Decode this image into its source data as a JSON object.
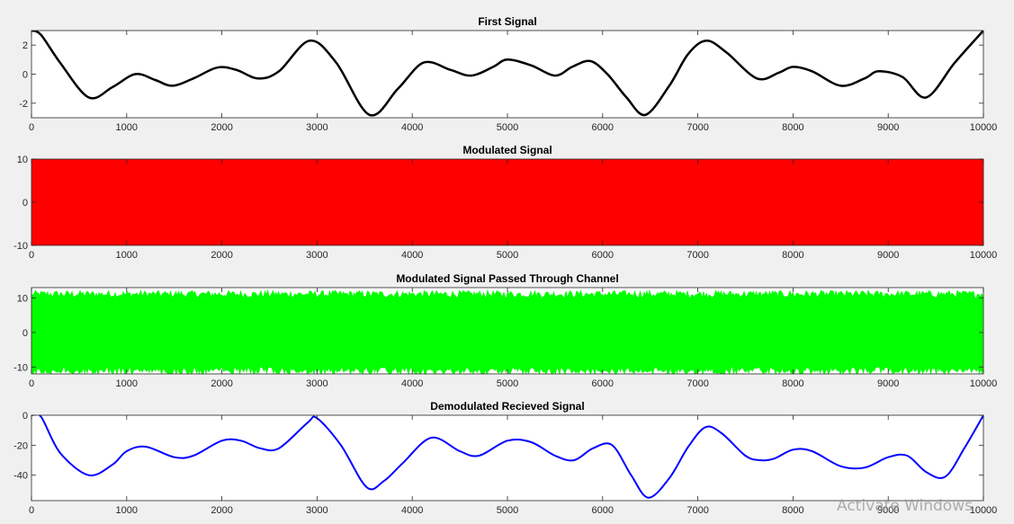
{
  "watermark": "Activate Windows",
  "chart_data": [
    {
      "type": "line",
      "title": "First Signal",
      "color": "#000000",
      "xlim": [
        0,
        10000
      ],
      "ylim": [
        -3,
        3
      ],
      "xticks": [
        0,
        1000,
        2000,
        3000,
        4000,
        5000,
        6000,
        7000,
        8000,
        9000,
        10000
      ],
      "yticks": [
        -2,
        0,
        2
      ],
      "series": [
        {
          "x": [
            0,
            100,
            300,
            600,
            850,
            1090,
            1300,
            1480,
            1700,
            1950,
            2150,
            2380,
            2600,
            2920,
            3200,
            3550,
            3850,
            4120,
            4400,
            4620,
            4850,
            5000,
            5250,
            5500,
            5680,
            5870,
            6050,
            6250,
            6450,
            6700,
            6900,
            7090,
            7300,
            7620,
            7850,
            8000,
            8200,
            8500,
            8750,
            8900,
            9150,
            9400,
            9700,
            10000
          ],
          "values": [
            3.0,
            2.7,
            0.8,
            -1.6,
            -0.9,
            0.0,
            -0.4,
            -0.8,
            -0.3,
            0.45,
            0.3,
            -0.3,
            0.2,
            2.3,
            0.8,
            -2.8,
            -1.0,
            0.8,
            0.3,
            -0.1,
            0.5,
            1.0,
            0.6,
            -0.1,
            0.5,
            0.9,
            0.0,
            -1.6,
            -2.8,
            -0.8,
            1.4,
            2.3,
            1.5,
            -0.3,
            0.1,
            0.5,
            0.2,
            -0.8,
            -0.3,
            0.2,
            -0.2,
            -1.6,
            0.8,
            3.0
          ]
        }
      ]
    },
    {
      "type": "line",
      "title": "Modulated Signal",
      "color": "#ff0000",
      "xlim": [
        0,
        10000
      ],
      "ylim": [
        -10,
        10
      ],
      "xticks": [
        0,
        1000,
        2000,
        3000,
        4000,
        5000,
        6000,
        7000,
        8000,
        9000,
        10000
      ],
      "yticks": [
        -10,
        0,
        10
      ],
      "series": [
        {
          "band": true,
          "x": [
            0,
            10000
          ],
          "upper": [
            10,
            10
          ],
          "lower": [
            -10,
            -10
          ]
        }
      ]
    },
    {
      "type": "line",
      "title": "Modulated Signal Passed Through Channel",
      "color": "#00ff00",
      "xlim": [
        0,
        10000
      ],
      "ylim": [
        -12,
        13
      ],
      "xticks": [
        0,
        1000,
        2000,
        3000,
        4000,
        5000,
        6000,
        7000,
        8000,
        9000,
        10000
      ],
      "yticks": [
        -10,
        0,
        10
      ],
      "series": [
        {
          "band": true,
          "noisy": true,
          "x": [
            0,
            10000
          ],
          "upper": [
            12,
            12
          ],
          "lower": [
            -12,
            -12
          ]
        }
      ]
    },
    {
      "type": "line",
      "title": "Demodulated Recieved Signal",
      "color": "#0000ff",
      "xlim": [
        0,
        10000
      ],
      "ylim": [
        -57,
        0
      ],
      "xticks": [
        0,
        1000,
        2000,
        3000,
        4000,
        5000,
        6000,
        7000,
        8000,
        9000,
        10000
      ],
      "yticks": [
        -40,
        -20,
        0
      ],
      "series": [
        {
          "x": [
            0,
            100,
            300,
            600,
            850,
            1000,
            1200,
            1500,
            1700,
            2000,
            2200,
            2400,
            2600,
            2900,
            3000,
            3250,
            3520,
            3700,
            3900,
            4200,
            4500,
            4700,
            5000,
            5250,
            5500,
            5700,
            5900,
            6100,
            6300,
            6480,
            6700,
            6900,
            7080,
            7250,
            7500,
            7650,
            7800,
            8000,
            8200,
            8500,
            8750,
            9000,
            9200,
            9400,
            9600,
            9800,
            10000
          ],
          "values": [
            0,
            -1,
            -25,
            -40,
            -33,
            -24,
            -21,
            -28,
            -27,
            -17,
            -17,
            -22,
            -22,
            -5,
            -2,
            -20,
            -48,
            -44,
            -32,
            -15,
            -24,
            -27,
            -17,
            -18,
            -27,
            -30,
            -22,
            -20,
            -40,
            -55,
            -42,
            -21,
            -8,
            -12,
            -27,
            -30,
            -29,
            -23,
            -24,
            -34,
            -35,
            -28,
            -27,
            -38,
            -41,
            -22,
            0
          ]
        }
      ]
    }
  ]
}
